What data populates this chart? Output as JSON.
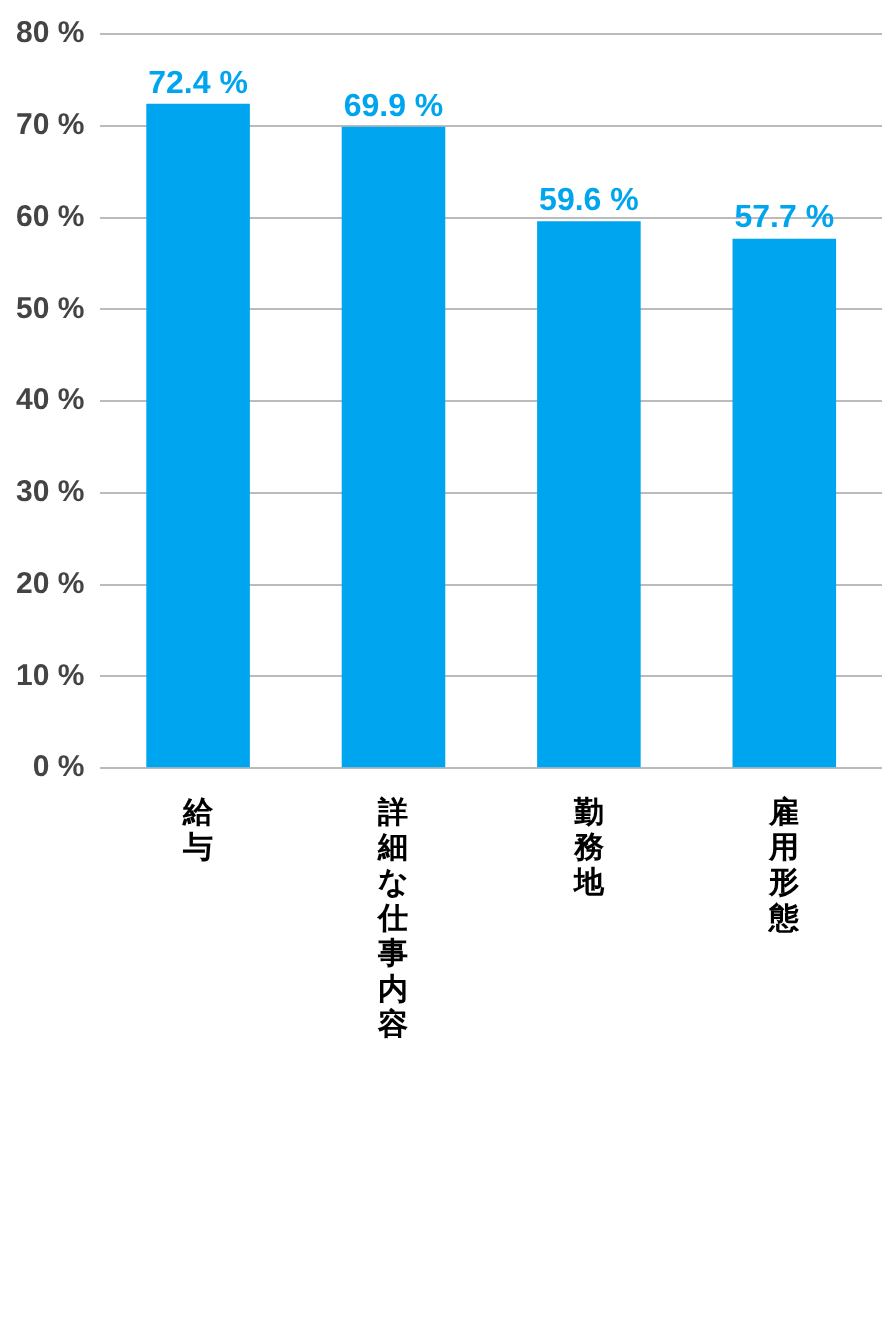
{
  "chart_data": {
    "type": "bar",
    "categories": [
      "給与",
      "詳細な仕事内容",
      "勤務地",
      "雇用形態"
    ],
    "values": [
      72.4,
      69.9,
      59.6,
      57.7
    ],
    "value_labels": [
      "72.4 %",
      "69.9 %",
      "59.6 %",
      "57.7 %"
    ],
    "color": "#00a5ef",
    "ylim": [
      0,
      80
    ],
    "yticks": [
      {
        "value": 0,
        "label": "0 %"
      },
      {
        "value": 10,
        "label": "10 %"
      },
      {
        "value": 20,
        "label": "20 %"
      },
      {
        "value": 30,
        "label": "30 %"
      },
      {
        "value": 40,
        "label": "40 %"
      },
      {
        "value": 50,
        "label": "50 %"
      },
      {
        "value": 60,
        "label": "60 %"
      },
      {
        "value": 70,
        "label": "70 %"
      },
      {
        "value": 80,
        "label": "80 %"
      }
    ],
    "grid": "y",
    "legend": false
  }
}
